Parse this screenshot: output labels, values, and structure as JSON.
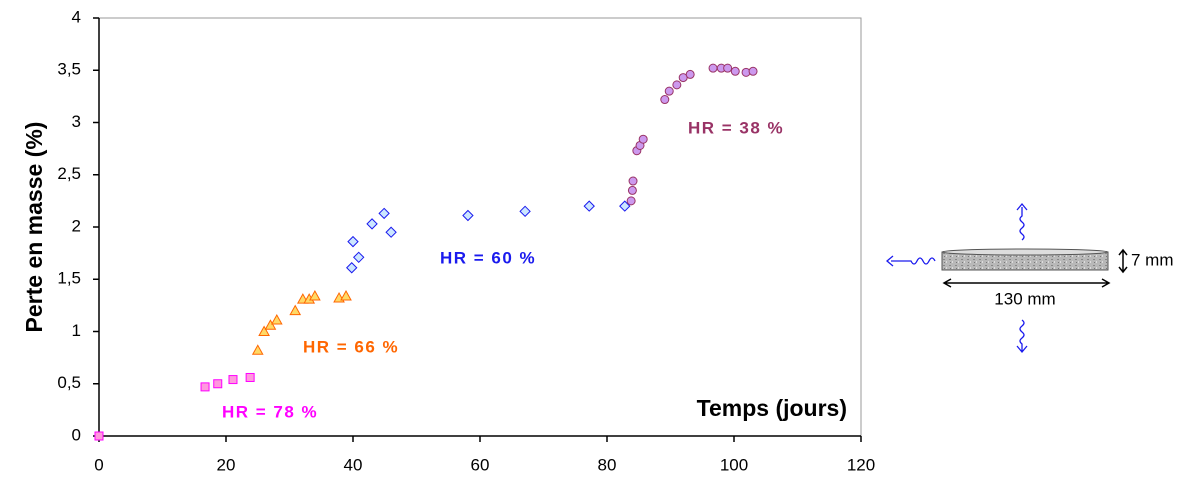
{
  "chart_data": {
    "type": "scatter",
    "y_label": "Perte en masse (%)",
    "x_label": "Temps (jours)",
    "xlim": [
      0,
      120
    ],
    "xticks": [
      0,
      20,
      40,
      60,
      80,
      100,
      120
    ],
    "ylim": [
      0,
      4
    ],
    "yticks": [
      0,
      {
        "value": 0.5,
        "label": "0,5"
      },
      1,
      {
        "value": 1.5,
        "label": "1,5"
      },
      2,
      {
        "value": 2.5,
        "label": "2,5"
      },
      3,
      {
        "value": 3.5,
        "label": "3,5"
      },
      4
    ],
    "series": [
      {
        "name": "HR = 78 %",
        "marker": "square",
        "color": "#ff00ff",
        "fill": "#ff99dd",
        "x": [
          0,
          16.7,
          18.7,
          21.1,
          23.8
        ],
        "values": [
          0,
          0.47,
          0.5,
          0.54,
          0.56
        ]
      },
      {
        "name": "HR = 66 %",
        "marker": "triangle",
        "color": "#ff6600",
        "fill": "#ffd966",
        "x": [
          25,
          26,
          27,
          28,
          30.9,
          32.1,
          33.1,
          34,
          37.8,
          38.9
        ],
        "values": [
          0.82,
          1.0,
          1.06,
          1.11,
          1.2,
          1.31,
          1.31,
          1.34,
          1.32,
          1.34
        ]
      },
      {
        "name": "HR = 60 %",
        "marker": "diamond",
        "color": "#1a1aee",
        "fill": "#cce6ff",
        "x": [
          39.8,
          40,
          40.9,
          43,
          44.9,
          46,
          58.1,
          67.1,
          77.2,
          82.8
        ],
        "values": [
          1.61,
          1.86,
          1.71,
          2.03,
          2.13,
          1.95,
          2.11,
          2.15,
          2.2,
          2.2
        ]
      },
      {
        "name": "HR = 38 %",
        "marker": "circle",
        "color": "#993366",
        "fill": "#cc99ee",
        "x": [
          83.8,
          84,
          84.1,
          84.7,
          85.2,
          85.7,
          89.1,
          89.8,
          91,
          92,
          93.1,
          96.7,
          98,
          99,
          100.2,
          101.9,
          103
        ],
        "values": [
          2.25,
          2.35,
          2.44,
          2.73,
          2.78,
          2.84,
          3.22,
          3.3,
          3.36,
          3.43,
          3.46,
          3.52,
          3.52,
          3.52,
          3.49,
          3.48,
          3.49
        ]
      }
    ]
  },
  "diagram": {
    "thickness": "7 mm",
    "diameter": "130 mm"
  }
}
